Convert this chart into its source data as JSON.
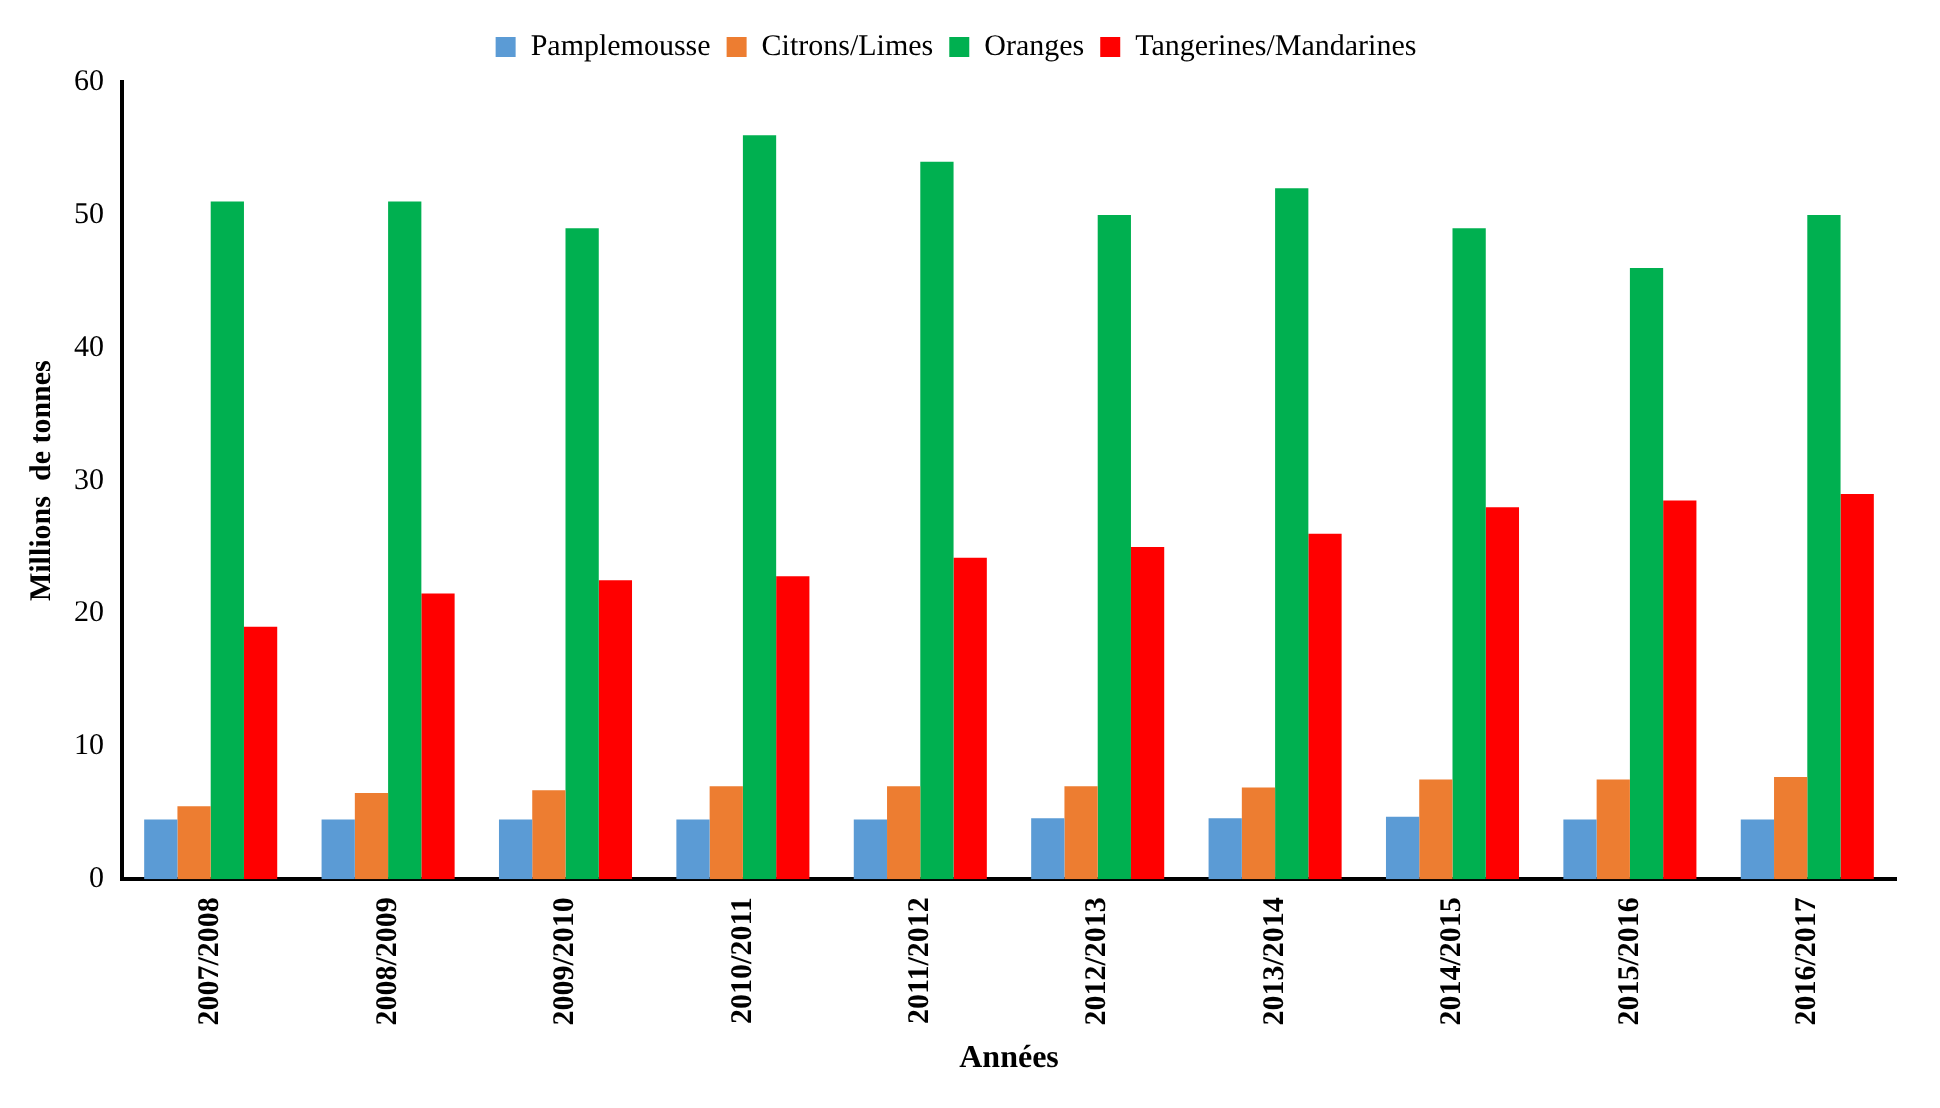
{
  "chart_data": {
    "type": "bar",
    "xlabel": "Années",
    "ylabel": "Millions  de tonnes",
    "categories": [
      "2007/2008",
      "2008/2009",
      "2009/2010",
      "2010/2011",
      "2011/2012",
      "2012/2013",
      "2013/2014",
      "2014/2015",
      "2015/2016",
      "2016/2017"
    ],
    "series": [
      {
        "name": "Pamplemousse",
        "color": "#5b9bd5",
        "values": [
          4.5,
          4.5,
          4.5,
          4.5,
          4.5,
          4.6,
          4.6,
          4.7,
          4.5,
          4.5
        ]
      },
      {
        "name": "Citrons/Limes",
        "color": "#ed7d31",
        "values": [
          5.5,
          6.5,
          6.7,
          7,
          7,
          7,
          6.9,
          7.5,
          7.5,
          7.7
        ]
      },
      {
        "name": "Oranges",
        "color": "#00b050",
        "values": [
          51,
          51,
          49,
          56,
          54,
          50,
          52,
          49,
          46,
          50
        ]
      },
      {
        "name": "Tangerines/Mandarines",
        "color": "#ff0000",
        "values": [
          19,
          21.5,
          22.5,
          22.8,
          24.2,
          25,
          26,
          28,
          28.5,
          29
        ]
      }
    ],
    "ylim": [
      0,
      60
    ],
    "yticks": [
      0,
      10,
      20,
      30,
      40,
      50,
      60
    ],
    "grid": false,
    "legend": "top"
  }
}
